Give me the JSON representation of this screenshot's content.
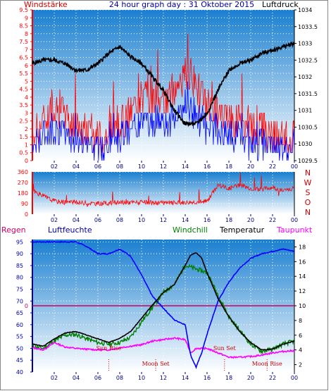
{
  "header": {
    "left": "Windstärke",
    "title": "24 hour graph day : 31 Oktober 2015",
    "right": "Luftdruck"
  },
  "bottom_header": {
    "regen": "Regen",
    "luftfeuchte": "Luftfeuchte",
    "windchill": "Windchill",
    "temperatur": "Temperatur",
    "taupunkt": "Taupunkt"
  },
  "compass": [
    "N",
    "W",
    "S",
    "O",
    "N"
  ],
  "annotations": {
    "sun_rise": "Sun Rise",
    "sun_set": "Sun Set",
    "moon_set": "Moon Set",
    "moon_rise": "Moon Rise",
    "rain_zero": "0"
  },
  "colors": {
    "plot_top": "#1a7fd0",
    "plot_bottom": "#ffffff",
    "wind_gust": "#ff0000",
    "wind_avg": "#0000ff",
    "pressure": "#000000",
    "direction": "#ff0000",
    "humidity": "#0000ff",
    "temperature": "#000000",
    "windchill": "#008000",
    "dewpoint": "#ff00ff",
    "rain": "#cc0066",
    "left_axis": "#ff0000",
    "right_axis": "#000080"
  },
  "chart_data": [
    {
      "type": "line",
      "name": "wind-pressure",
      "x_ticks": [
        "02",
        "04",
        "06",
        "08",
        "10",
        "12",
        "14",
        "16",
        "18",
        "20",
        "22",
        "00"
      ],
      "y_left_ticks": [
        "0",
        "0.5",
        "1",
        "1.5",
        "2",
        "2.5",
        "3",
        "3.5",
        "4",
        "4.5",
        "5",
        "5.5",
        "6",
        "6.5",
        "7",
        "7.5",
        "8",
        "8.5",
        "9",
        "9.5"
      ],
      "y_left_range": [
        0,
        9.5
      ],
      "y_right_ticks": [
        "1029.5",
        "1030",
        "1030.5",
        "1031",
        "1031.5",
        "1032",
        "1032.5",
        "1033",
        "1033.5",
        "1034"
      ],
      "y_right_range": [
        1029.5,
        1034
      ],
      "series": [
        {
          "name": "Windstärke",
          "x": [
            0,
            2,
            4,
            6,
            8,
            10,
            12,
            14,
            16,
            18,
            20,
            22,
            24
          ],
          "values": [
            1.5,
            3.5,
            2,
            1.5,
            2,
            4,
            3.5,
            5.5,
            3.5,
            2.5,
            2,
            1.5,
            1.5
          ]
        },
        {
          "name": "Luftdruck",
          "x": [
            0,
            1,
            2,
            3,
            4,
            5,
            6,
            7,
            8,
            9,
            10,
            11,
            12,
            13,
            14,
            15,
            16,
            17,
            18,
            19,
            20,
            21,
            22,
            23,
            24
          ],
          "values": [
            1032.4,
            1032.5,
            1032.5,
            1032.4,
            1032.2,
            1032.2,
            1032.4,
            1032.7,
            1032.9,
            1032.6,
            1032.4,
            1032.0,
            1031.6,
            1031.0,
            1030.6,
            1030.6,
            1030.9,
            1031.6,
            1032.2,
            1032.4,
            1032.5,
            1032.7,
            1032.8,
            1032.9,
            1033.0
          ]
        }
      ]
    },
    {
      "type": "line",
      "name": "wind-direction",
      "x_ticks": [
        "02",
        "04",
        "06",
        "08",
        "10",
        "12",
        "14",
        "16",
        "18",
        "20",
        "22",
        "00"
      ],
      "y_ticks": [
        "0",
        "90",
        "180",
        "270",
        "360"
      ],
      "y_range": [
        0,
        360
      ],
      "series": [
        {
          "name": "direction",
          "x": [
            0,
            2,
            4,
            6,
            8,
            10,
            12,
            14,
            16,
            17,
            18,
            19,
            20,
            21,
            22,
            23,
            24
          ],
          "values": [
            200,
            110,
            100,
            90,
            100,
            100,
            95,
            100,
            110,
            250,
            220,
            250,
            220,
            210,
            230,
            200,
            220
          ]
        }
      ]
    },
    {
      "type": "line",
      "name": "humidity-temperature",
      "x_ticks": [
        "02",
        "04",
        "06",
        "08",
        "10",
        "12",
        "14",
        "16",
        "18",
        "20",
        "22",
        "00"
      ],
      "y_left_ticks": [
        "40",
        "45",
        "50",
        "55",
        "60",
        "65",
        "70",
        "75",
        "80",
        "85",
        "90",
        "95"
      ],
      "y_left_range": [
        40,
        96
      ],
      "y_right_ticks": [
        "2",
        "4",
        "6",
        "8",
        "10",
        "12",
        "14",
        "16",
        "18"
      ],
      "y_right_range": [
        1,
        19
      ],
      "series": [
        {
          "name": "Luftfeuchte",
          "x": [
            0,
            1,
            2,
            3,
            4,
            5,
            6,
            7,
            8,
            9,
            10,
            11,
            12,
            13,
            14,
            14.5,
            15,
            15.5,
            16,
            17,
            18,
            19,
            20,
            21,
            22,
            23,
            24
          ],
          "values": [
            95,
            95,
            95,
            95,
            95,
            93,
            90,
            90,
            92,
            89,
            81,
            72,
            67,
            62,
            60,
            47,
            42,
            48,
            56,
            70,
            78,
            84,
            88,
            90,
            91,
            92,
            91
          ]
        },
        {
          "name": "Temperatur",
          "x": [
            0,
            1,
            2,
            3,
            4,
            5,
            6,
            7,
            8,
            9,
            10,
            11,
            12,
            13,
            14,
            14.5,
            15,
            15.5,
            16,
            17,
            18,
            19,
            20,
            21,
            22,
            23,
            24
          ],
          "values": [
            4.8,
            4.5,
            5.5,
            6.3,
            6.5,
            6.0,
            5.5,
            5.0,
            5.6,
            6.5,
            8.3,
            10.1,
            11.8,
            12.9,
            15.5,
            16.9,
            17.2,
            16.5,
            14.5,
            11.0,
            8.5,
            6.5,
            5.0,
            4.0,
            4.1,
            4.8,
            5.2
          ]
        },
        {
          "name": "Windchill",
          "x": [
            0,
            1,
            2,
            3,
            4,
            5,
            6,
            7,
            8,
            9,
            10,
            11,
            12,
            13,
            14,
            16,
            18,
            20,
            21,
            22,
            23,
            24
          ],
          "values": [
            4.5,
            4.2,
            5.2,
            6.0,
            6.1,
            5.5,
            5.0,
            4.8,
            5.0,
            5.7,
            7.8,
            9.8,
            11.8,
            12.9,
            15.5,
            14.5,
            8.5,
            4.8,
            3.8,
            4.1,
            4.8,
            5.2
          ]
        },
        {
          "name": "Taupunkt",
          "x": [
            0,
            1,
            2,
            3,
            4,
            5,
            6,
            7,
            8,
            9,
            10,
            11,
            12,
            13,
            14,
            14.5,
            15,
            16,
            17,
            18,
            19,
            20,
            21,
            22,
            23,
            24
          ],
          "values": [
            4.3,
            4.0,
            5.0,
            4.4,
            4.2,
            4.1,
            4.0,
            4.0,
            4.3,
            4.5,
            4.7,
            5.2,
            5.4,
            5.6,
            5.4,
            3.6,
            4.2,
            4.2,
            3.6,
            3.0,
            3.0,
            3.1,
            3.3,
            3.6,
            3.8,
            3.9
          ]
        }
      ]
    }
  ]
}
